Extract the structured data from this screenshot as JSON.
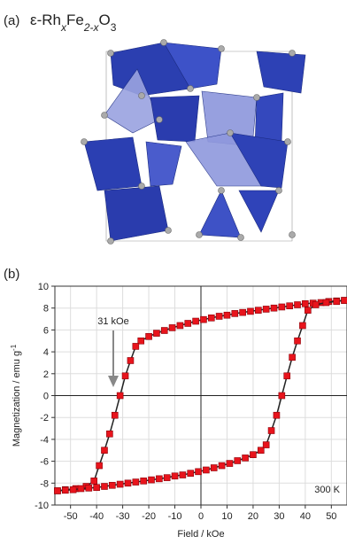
{
  "panel_a": {
    "label": "(a)",
    "formula": [
      "ε-Rh",
      "x",
      "Fe",
      "2-x",
      "O",
      "3"
    ]
  },
  "panel_b": {
    "label": "(b)"
  },
  "chart_data": {
    "type": "line",
    "xlabel": "Field / kOe",
    "ylabel": "Magnetization / emu g",
    "ylabel_sup": "-1",
    "annotations": [
      "31 kOe",
      "300 K"
    ],
    "xlim": [
      -56,
      56
    ],
    "ylim": [
      -10,
      10
    ],
    "xticks": [
      -50,
      -40,
      -30,
      -20,
      -10,
      0,
      10,
      20,
      30,
      40,
      50
    ],
    "yticks": [
      10,
      8,
      6,
      4,
      2,
      0,
      -2,
      -4,
      -6,
      -8,
      -10
    ],
    "grid": true,
    "series": [
      {
        "color": "#e8141c",
        "x": [
          55,
          52,
          49,
          46,
          43,
          40,
          37,
          34,
          31,
          28,
          25,
          22,
          19,
          16,
          13,
          10,
          7,
          4,
          1,
          -2,
          -5,
          -8,
          -11,
          -14,
          -17,
          -20,
          -23,
          -25,
          -27,
          -29,
          -31,
          -33,
          -35,
          -37,
          -39,
          -41,
          -44,
          -48,
          -52,
          -55
        ],
        "values": [
          8.7,
          8.65,
          8.6,
          8.5,
          8.45,
          8.4,
          8.3,
          8.2,
          8.1,
          8.0,
          7.9,
          7.8,
          7.7,
          7.6,
          7.5,
          7.35,
          7.25,
          7.1,
          6.95,
          6.8,
          6.6,
          6.4,
          6.2,
          5.95,
          5.7,
          5.4,
          5.0,
          4.5,
          3.2,
          1.8,
          0,
          -1.8,
          -3.5,
          -5.0,
          -6.4,
          -7.8,
          -8.3,
          -8.5,
          -8.6,
          -8.7
        ]
      },
      {
        "color": "#e8141c",
        "x": [
          -55,
          -52,
          -49,
          -46,
          -43,
          -40,
          -37,
          -34,
          -31,
          -28,
          -25,
          -22,
          -19,
          -16,
          -13,
          -10,
          -7,
          -4,
          -1,
          2,
          5,
          8,
          11,
          14,
          17,
          20,
          23,
          25,
          27,
          29,
          31,
          33,
          35,
          37,
          39,
          41,
          44,
          48,
          52,
          55
        ],
        "values": [
          -8.7,
          -8.65,
          -8.6,
          -8.5,
          -8.45,
          -8.4,
          -8.3,
          -8.2,
          -8.1,
          -8.0,
          -7.9,
          -7.8,
          -7.7,
          -7.6,
          -7.5,
          -7.35,
          -7.25,
          -7.1,
          -6.95,
          -6.8,
          -6.6,
          -6.4,
          -6.2,
          -5.95,
          -5.7,
          -5.4,
          -5.0,
          -4.5,
          -3.2,
          -1.8,
          0,
          1.8,
          3.5,
          5.0,
          6.4,
          7.8,
          8.3,
          8.5,
          8.6,
          8.7
        ]
      }
    ]
  }
}
